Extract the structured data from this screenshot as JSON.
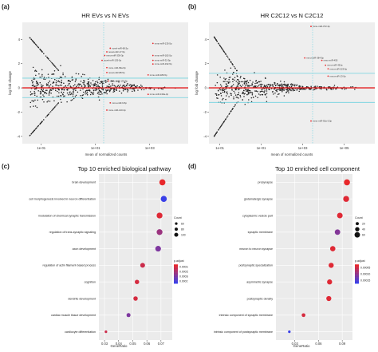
{
  "figure": {
    "panel_labels": [
      "(a)",
      "(b)",
      "(c)",
      "(d)"
    ]
  },
  "chart_data": [
    {
      "id": "a",
      "type": "scatter",
      "subtype": "ma-plot",
      "title": "HR EVs vs N EVs",
      "xlabel": "mean of normalized counts",
      "ylabel": "log fold change",
      "xscale": "log",
      "xticks": [
        "1e-01",
        "1e+01",
        "1e+03"
      ],
      "xtick_values": [
        0.1,
        10,
        1000
      ],
      "yticks": [
        -4,
        -2,
        0,
        2,
        4
      ],
      "xlim": [
        0.02,
        30000
      ],
      "ylim": [
        -4.6,
        5.4
      ],
      "hlines": {
        "red": 0,
        "cyan": [
          -0.8,
          0.8
        ]
      },
      "vline_cyan": 20,
      "grid": false,
      "colors": {
        "points": "#222222",
        "significant": "#e8282b",
        "zero_line": "#e31a1c",
        "threshold_lines": "#6fd2df",
        "background": "#eeeeee"
      },
      "labels": [
        {
          "text": "novel-miR-68.5p",
          "x": 40,
          "y": 3.2
        },
        {
          "text": "novel-miR-17-5p",
          "x": 30,
          "y": 2.9
        },
        {
          "text": "mmu-miR-339-3p",
          "x": 25,
          "y": 2.6
        },
        {
          "text": "novel-miR-135-5p",
          "x": 20,
          "y": 2.2
        },
        {
          "text": "mmu-miR-99a-5p",
          "x": 30,
          "y": 1.6
        },
        {
          "text": "novel-miR-88.5p",
          "x": 30,
          "y": 1.2
        },
        {
          "text": "mmu-miR-133-3p",
          "x": 35,
          "y": 0.5
        },
        {
          "text": "mmu-miR-9-5p",
          "x": 40,
          "y": -1.3
        },
        {
          "text": "mmu-miR-140-3p",
          "x": 30,
          "y": -1.9
        },
        {
          "text": "mmu-miR-135-5p",
          "x": 1500,
          "y": 3.6
        },
        {
          "text": "mmu-miR-182-5p",
          "x": 1500,
          "y": 2.6
        },
        {
          "text": "mmu-miR-32-5p",
          "x": 1500,
          "y": 2.2
        },
        {
          "text": "mmu-miR-192-5p",
          "x": 1500,
          "y": 1.9
        },
        {
          "text": "mmu-miR-186-5p",
          "x": 1000,
          "y": 1.0
        },
        {
          "text": "mmu-miR-130a-3p",
          "x": 1000,
          "y": -0.6
        }
      ]
    },
    {
      "id": "b",
      "type": "scatter",
      "subtype": "ma-plot",
      "title": "HR C2C12 vs N C2C12",
      "xlabel": "mean of normalized counts",
      "ylabel": "log fold change",
      "xscale": "log",
      "xticks": [
        "1e-01",
        "1e+01",
        "1e+03",
        "1e+05"
      ],
      "xtick_values": [
        0.1,
        10,
        1000,
        100000
      ],
      "yticks": [
        -4,
        -2,
        0,
        2,
        4
      ],
      "xlim": [
        0.03,
        3000000
      ],
      "ylim": [
        -4.6,
        5.4
      ],
      "hlines": {
        "red": 0,
        "cyan": [
          -1.2,
          1.2
        ]
      },
      "vline_cyan": 3000,
      "grid": false,
      "colors": {
        "points": "#222222",
        "significant": "#e8282b",
        "zero_line": "#e31a1c",
        "threshold_lines": "#6fd2df",
        "background": "#eeeeee"
      },
      "labels": [
        {
          "text": "mmu-miR-372-3p",
          "x": 3000,
          "y": 5.0
        },
        {
          "text": "mmu-miR-384-5p",
          "x": 1500,
          "y": 2.4
        },
        {
          "text": "mmu-miR-455",
          "x": 10000,
          "y": 2.2
        },
        {
          "text": "mmu-miR-451a",
          "x": 15000,
          "y": 1.8
        },
        {
          "text": "mmu-miR-223-5p",
          "x": 20000,
          "y": 1.5
        },
        {
          "text": "mmu-miR-13-5p",
          "x": 20000,
          "y": 0.9
        },
        {
          "text": "mmu-miR-92a-3.5p",
          "x": 3000,
          "y": -2.8
        }
      ]
    },
    {
      "id": "c",
      "type": "dot",
      "title": "Top 10 enriched biological pathway",
      "xlabel": "GeneRatio",
      "xticks": [
        0.03,
        0.04,
        0.05,
        0.06,
        0.07
      ],
      "xlim": [
        0.026,
        0.078
      ],
      "categories": [
        "brain development",
        "cell morphogenesis involved in neuron differentiation",
        "modulation of chemical synaptic transmission",
        "regulation of trans-synaptic signaling",
        "axon development",
        "regulation of actin filament-based process",
        "cognition",
        "dendrite development",
        "cardiac muscle tissue development",
        "cardiocyte differentiation"
      ],
      "gene_ratio": [
        0.071,
        0.072,
        0.069,
        0.069,
        0.068,
        0.057,
        0.053,
        0.052,
        0.047,
        0.031
      ],
      "count": [
        150,
        150,
        145,
        145,
        140,
        120,
        110,
        110,
        100,
        65
      ],
      "p_adjust": [
        1e-05,
        0.00019,
        2e-05,
        9e-05,
        0.00012,
        4e-05,
        3e-05,
        3e-05,
        0.00012,
        4e-05
      ],
      "size_legend": {
        "title": "Count",
        "values": [
          60,
          80,
          100
        ]
      },
      "color_legend": {
        "title": "p.adjust",
        "labels": [
          "0.00014",
          "0.00015",
          "0.00016",
          "0.00017"
        ],
        "low_color": "#e8282b",
        "high_color": "#3a40e8"
      }
    },
    {
      "id": "d",
      "type": "dot",
      "title": "Top 10 enriched cell component",
      "xlabel": "GeneRatio",
      "xticks": [
        0.03,
        0.06,
        0.09
      ],
      "xlim": [
        0.006,
        0.103
      ],
      "categories": [
        "presynapse",
        "glutamatergic synapse",
        "cytoplasmic vesicle part",
        "synaptic membrane",
        "neuron to neuron synapse",
        "postsynaptic specialization",
        "asymmetric synapse",
        "postsynaptic density",
        "intrinsic component of synaptic membrane",
        "intrinsic component of postsynaptic membrane"
      ],
      "gene_ratio": [
        0.096,
        0.095,
        0.087,
        0.084,
        0.078,
        0.076,
        0.074,
        0.073,
        0.041,
        0.023
      ],
      "count": [
        70,
        68,
        62,
        60,
        56,
        54,
        53,
        52,
        30,
        10
      ],
      "p_adjust": [
        1e-06,
        2e-06,
        2e-06,
        1.2e-05,
        2e-06,
        2e-06,
        2e-06,
        2e-06,
        3e-06,
        2e-05
      ],
      "size_legend": {
        "title": "Count",
        "values": [
          20,
          40,
          60
        ]
      },
      "color_legend": {
        "title": "p.adjust",
        "labels": [
          "0.00005",
          "0.00010",
          "0.00015"
        ],
        "low_color": "#e8282b",
        "high_color": "#3a40e8"
      }
    }
  ]
}
